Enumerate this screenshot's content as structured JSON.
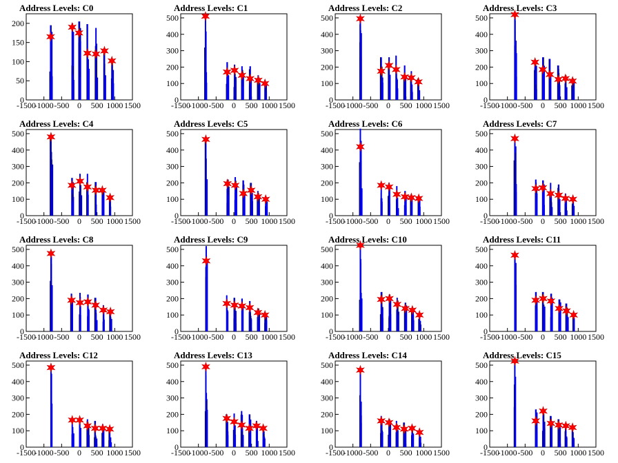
{
  "chart_data": [
    {
      "type": "histogram",
      "title": "Address Levels: C0",
      "xlim": [
        -1500,
        1500
      ],
      "ylim": [
        0,
        225
      ],
      "yticks": [
        0,
        50,
        100,
        150,
        200
      ],
      "xticks": [
        -1500,
        -1000,
        -500,
        0,
        500,
        1000,
        1500
      ],
      "peaks": [
        {
          "x": -810,
          "y": 165,
          "bar_max": 195
        },
        {
          "x": -200,
          "y": 190,
          "bar_max": 200
        },
        {
          "x": -10,
          "y": 175,
          "bar_max": 205
        },
        {
          "x": 230,
          "y": 122,
          "bar_max": 198
        },
        {
          "x": 470,
          "y": 120,
          "bar_max": 188
        },
        {
          "x": 710,
          "y": 128,
          "bar_max": 135
        },
        {
          "x": 920,
          "y": 102,
          "bar_max": 105
        }
      ]
    },
    {
      "type": "histogram",
      "title": "Address Levels: C1",
      "xlim": [
        -1500,
        1500
      ],
      "ylim": [
        0,
        525
      ],
      "yticks": [
        0,
        100,
        200,
        300,
        400,
        500
      ],
      "xticks": [
        -1500,
        -1000,
        -500,
        0,
        500,
        1000,
        1500
      ],
      "peaks": [
        {
          "x": -800,
          "y": 510,
          "bar_max": 520
        },
        {
          "x": -190,
          "y": 170,
          "bar_max": 230
        },
        {
          "x": 20,
          "y": 180,
          "bar_max": 215
        },
        {
          "x": 230,
          "y": 150,
          "bar_max": 205
        },
        {
          "x": 460,
          "y": 130,
          "bar_max": 205
        },
        {
          "x": 690,
          "y": 120,
          "bar_max": 150
        },
        {
          "x": 880,
          "y": 100,
          "bar_max": 120
        }
      ]
    },
    {
      "type": "histogram",
      "title": "Address Levels: C2",
      "xlim": [
        -1500,
        1500
      ],
      "ylim": [
        0,
        525
      ],
      "yticks": [
        0,
        100,
        200,
        300,
        400,
        500
      ],
      "xticks": [
        -1500,
        -1000,
        -500,
        0,
        500,
        1000,
        1500
      ],
      "peaks": [
        {
          "x": -790,
          "y": 495,
          "bar_max": 510
        },
        {
          "x": -200,
          "y": 175,
          "bar_max": 260
        },
        {
          "x": 20,
          "y": 210,
          "bar_max": 260
        },
        {
          "x": 220,
          "y": 185,
          "bar_max": 270
        },
        {
          "x": 460,
          "y": 140,
          "bar_max": 210
        },
        {
          "x": 650,
          "y": 135,
          "bar_max": 175
        },
        {
          "x": 850,
          "y": 110,
          "bar_max": 130
        }
      ]
    },
    {
      "type": "histogram",
      "title": "Address Levels: C3",
      "xlim": [
        -1500,
        1500
      ],
      "ylim": [
        0,
        525
      ],
      "yticks": [
        0,
        100,
        200,
        300,
        400,
        500
      ],
      "xticks": [
        -1500,
        -1000,
        -500,
        0,
        500,
        1000,
        1500
      ],
      "peaks": [
        {
          "x": -790,
          "y": 520,
          "bar_max": 530
        },
        {
          "x": -220,
          "y": 230,
          "bar_max": 240
        },
        {
          "x": 0,
          "y": 185,
          "bar_max": 260
        },
        {
          "x": 200,
          "y": 155,
          "bar_max": 250
        },
        {
          "x": 440,
          "y": 125,
          "bar_max": 210
        },
        {
          "x": 640,
          "y": 130,
          "bar_max": 150
        },
        {
          "x": 840,
          "y": 115,
          "bar_max": 130
        }
      ]
    },
    {
      "type": "histogram",
      "title": "Address Levels: C4",
      "xlim": [
        -1500,
        1500
      ],
      "ylim": [
        0,
        525
      ],
      "yticks": [
        0,
        100,
        200,
        300,
        400,
        500
      ],
      "xticks": [
        -1500,
        -1000,
        -500,
        0,
        500,
        1000,
        1500
      ],
      "peaks": [
        {
          "x": -800,
          "y": 480,
          "bar_max": 490
        },
        {
          "x": -210,
          "y": 185,
          "bar_max": 230
        },
        {
          "x": 20,
          "y": 210,
          "bar_max": 255
        },
        {
          "x": 230,
          "y": 175,
          "bar_max": 255
        },
        {
          "x": 470,
          "y": 155,
          "bar_max": 205
        },
        {
          "x": 650,
          "y": 155,
          "bar_max": 165
        },
        {
          "x": 870,
          "y": 110,
          "bar_max": 125
        }
      ]
    },
    {
      "type": "histogram",
      "title": "Address Levels: C5",
      "xlim": [
        -1500,
        1500
      ],
      "ylim": [
        0,
        525
      ],
      "yticks": [
        0,
        100,
        200,
        300,
        400,
        500
      ],
      "xticks": [
        -1500,
        -1000,
        -500,
        0,
        500,
        1000,
        1500
      ],
      "peaks": [
        {
          "x": -790,
          "y": 465,
          "bar_max": 475
        },
        {
          "x": -180,
          "y": 195,
          "bar_max": 220
        },
        {
          "x": 40,
          "y": 185,
          "bar_max": 235
        },
        {
          "x": 270,
          "y": 135,
          "bar_max": 215
        },
        {
          "x": 490,
          "y": 155,
          "bar_max": 200
        },
        {
          "x": 680,
          "y": 115,
          "bar_max": 150
        },
        {
          "x": 900,
          "y": 100,
          "bar_max": 120
        }
      ]
    },
    {
      "type": "histogram",
      "title": "Address Levels: C6",
      "xlim": [
        -1500,
        1500
      ],
      "ylim": [
        0,
        525
      ],
      "yticks": [
        0,
        100,
        200,
        300,
        400,
        500
      ],
      "xticks": [
        -1500,
        -1000,
        -500,
        0,
        500,
        1000,
        1500
      ],
      "peaks": [
        {
          "x": -790,
          "y": 420,
          "bar_max": 530
        },
        {
          "x": -200,
          "y": 185,
          "bar_max": 200
        },
        {
          "x": 20,
          "y": 175,
          "bar_max": 200
        },
        {
          "x": 240,
          "y": 130,
          "bar_max": 180
        },
        {
          "x": 470,
          "y": 115,
          "bar_max": 150
        },
        {
          "x": 650,
          "y": 110,
          "bar_max": 130
        },
        {
          "x": 860,
          "y": 105,
          "bar_max": 120
        }
      ]
    },
    {
      "type": "histogram",
      "title": "Address Levels: C7",
      "xlim": [
        -1500,
        1500
      ],
      "ylim": [
        0,
        525
      ],
      "yticks": [
        0,
        100,
        200,
        300,
        400,
        500
      ],
      "xticks": [
        -1500,
        -1000,
        -500,
        0,
        500,
        1000,
        1500
      ],
      "peaks": [
        {
          "x": -790,
          "y": 470,
          "bar_max": 480
        },
        {
          "x": -200,
          "y": 165,
          "bar_max": 220
        },
        {
          "x": 0,
          "y": 170,
          "bar_max": 215
        },
        {
          "x": 220,
          "y": 135,
          "bar_max": 200
        },
        {
          "x": 450,
          "y": 125,
          "bar_max": 190
        },
        {
          "x": 640,
          "y": 105,
          "bar_max": 135
        },
        {
          "x": 850,
          "y": 100,
          "bar_max": 120
        }
      ]
    },
    {
      "type": "histogram",
      "title": "Address Levels: C8",
      "xlim": [
        -1500,
        1500
      ],
      "ylim": [
        0,
        525
      ],
      "yticks": [
        0,
        100,
        200,
        300,
        400,
        500
      ],
      "xticks": [
        -1500,
        -1000,
        -500,
        0,
        500,
        1000,
        1500
      ],
      "peaks": [
        {
          "x": -800,
          "y": 475,
          "bar_max": 485
        },
        {
          "x": -220,
          "y": 190,
          "bar_max": 230
        },
        {
          "x": 20,
          "y": 175,
          "bar_max": 235
        },
        {
          "x": 240,
          "y": 180,
          "bar_max": 225
        },
        {
          "x": 460,
          "y": 160,
          "bar_max": 205
        },
        {
          "x": 680,
          "y": 130,
          "bar_max": 160
        },
        {
          "x": 880,
          "y": 120,
          "bar_max": 130
        }
      ]
    },
    {
      "type": "histogram",
      "title": "Address Levels: C9",
      "xlim": [
        -1500,
        1500
      ],
      "ylim": [
        0,
        525
      ],
      "yticks": [
        0,
        100,
        200,
        300,
        400,
        500
      ],
      "xticks": [
        -1500,
        -1000,
        -500,
        0,
        500,
        1000,
        1500
      ],
      "peaks": [
        {
          "x": -780,
          "y": 430,
          "bar_max": 520
        },
        {
          "x": -200,
          "y": 170,
          "bar_max": 220
        },
        {
          "x": 20,
          "y": 160,
          "bar_max": 205
        },
        {
          "x": 230,
          "y": 155,
          "bar_max": 200
        },
        {
          "x": 450,
          "y": 145,
          "bar_max": 185
        },
        {
          "x": 680,
          "y": 115,
          "bar_max": 140
        },
        {
          "x": 880,
          "y": 100,
          "bar_max": 110
        }
      ]
    },
    {
      "type": "histogram",
      "title": "Address Levels: C10",
      "xlim": [
        -1500,
        1500
      ],
      "ylim": [
        0,
        525
      ],
      "yticks": [
        0,
        100,
        200,
        300,
        400,
        500
      ],
      "xticks": [
        -1500,
        -1000,
        -500,
        0,
        500,
        1000,
        1500
      ],
      "peaks": [
        {
          "x": -790,
          "y": 525,
          "bar_max": 535
        },
        {
          "x": -200,
          "y": 195,
          "bar_max": 240
        },
        {
          "x": 30,
          "y": 200,
          "bar_max": 225
        },
        {
          "x": 250,
          "y": 165,
          "bar_max": 205
        },
        {
          "x": 480,
          "y": 140,
          "bar_max": 175
        },
        {
          "x": 680,
          "y": 130,
          "bar_max": 150
        },
        {
          "x": 880,
          "y": 100,
          "bar_max": 110
        }
      ]
    },
    {
      "type": "histogram",
      "title": "Address Levels: C11",
      "xlim": [
        -1500,
        1500
      ],
      "ylim": [
        0,
        525
      ],
      "yticks": [
        0,
        100,
        200,
        300,
        400,
        500
      ],
      "xticks": [
        -1500,
        -1000,
        -500,
        0,
        500,
        1000,
        1500
      ],
      "peaks": [
        {
          "x": -790,
          "y": 465,
          "bar_max": 475
        },
        {
          "x": -200,
          "y": 190,
          "bar_max": 240
        },
        {
          "x": 10,
          "y": 200,
          "bar_max": 240
        },
        {
          "x": 230,
          "y": 185,
          "bar_max": 230
        },
        {
          "x": 460,
          "y": 140,
          "bar_max": 195
        },
        {
          "x": 670,
          "y": 125,
          "bar_max": 170
        },
        {
          "x": 870,
          "y": 100,
          "bar_max": 110
        }
      ]
    },
    {
      "type": "histogram",
      "title": "Address Levels: C12",
      "xlim": [
        -1500,
        1500
      ],
      "ylim": [
        0,
        525
      ],
      "yticks": [
        0,
        100,
        200,
        300,
        400,
        500
      ],
      "xticks": [
        -1500,
        -1000,
        -500,
        0,
        500,
        1000,
        1500
      ],
      "peaks": [
        {
          "x": -800,
          "y": 485,
          "bar_max": 495
        },
        {
          "x": -200,
          "y": 165,
          "bar_max": 170
        },
        {
          "x": 10,
          "y": 165,
          "bar_max": 185
        },
        {
          "x": 230,
          "y": 130,
          "bar_max": 170
        },
        {
          "x": 450,
          "y": 115,
          "bar_max": 160
        },
        {
          "x": 660,
          "y": 115,
          "bar_max": 140
        },
        {
          "x": 860,
          "y": 110,
          "bar_max": 115
        }
      ]
    },
    {
      "type": "histogram",
      "title": "Address Levels: C13",
      "xlim": [
        -1500,
        1500
      ],
      "ylim": [
        0,
        525
      ],
      "yticks": [
        0,
        100,
        200,
        300,
        400,
        500
      ],
      "xticks": [
        -1500,
        -1000,
        -500,
        0,
        500,
        1000,
        1500
      ],
      "peaks": [
        {
          "x": -790,
          "y": 490,
          "bar_max": 500
        },
        {
          "x": -200,
          "y": 175,
          "bar_max": 200
        },
        {
          "x": 10,
          "y": 155,
          "bar_max": 205
        },
        {
          "x": 220,
          "y": 135,
          "bar_max": 220
        },
        {
          "x": 440,
          "y": 115,
          "bar_max": 200
        },
        {
          "x": 640,
          "y": 130,
          "bar_max": 160
        },
        {
          "x": 830,
          "y": 115,
          "bar_max": 130
        }
      ]
    },
    {
      "type": "histogram",
      "title": "Address Levels: C14",
      "xlim": [
        -1500,
        1500
      ],
      "ylim": [
        0,
        525
      ],
      "yticks": [
        0,
        100,
        200,
        300,
        400,
        500
      ],
      "xticks": [
        -1500,
        -1000,
        -500,
        0,
        500,
        1000,
        1500
      ],
      "peaks": [
        {
          "x": -790,
          "y": 470,
          "bar_max": 480
        },
        {
          "x": -200,
          "y": 160,
          "bar_max": 190
        },
        {
          "x": 20,
          "y": 150,
          "bar_max": 170
        },
        {
          "x": 230,
          "y": 120,
          "bar_max": 160
        },
        {
          "x": 450,
          "y": 110,
          "bar_max": 150
        },
        {
          "x": 670,
          "y": 115,
          "bar_max": 130
        },
        {
          "x": 880,
          "y": 90,
          "bar_max": 105
        }
      ]
    },
    {
      "type": "histogram",
      "title": "Address Levels: C15",
      "xlim": [
        -1500,
        1500
      ],
      "ylim": [
        0,
        525
      ],
      "yticks": [
        0,
        100,
        200,
        300,
        400,
        500
      ],
      "xticks": [
        -1500,
        -1000,
        -500,
        0,
        500,
        1000,
        1500
      ],
      "peaks": [
        {
          "x": -790,
          "y": 525,
          "bar_max": 535
        },
        {
          "x": -200,
          "y": 160,
          "bar_max": 230
        },
        {
          "x": 10,
          "y": 220,
          "bar_max": 230
        },
        {
          "x": 230,
          "y": 145,
          "bar_max": 190
        },
        {
          "x": 450,
          "y": 135,
          "bar_max": 170
        },
        {
          "x": 650,
          "y": 130,
          "bar_max": 140
        },
        {
          "x": 840,
          "y": 120,
          "bar_max": 130
        }
      ]
    }
  ]
}
